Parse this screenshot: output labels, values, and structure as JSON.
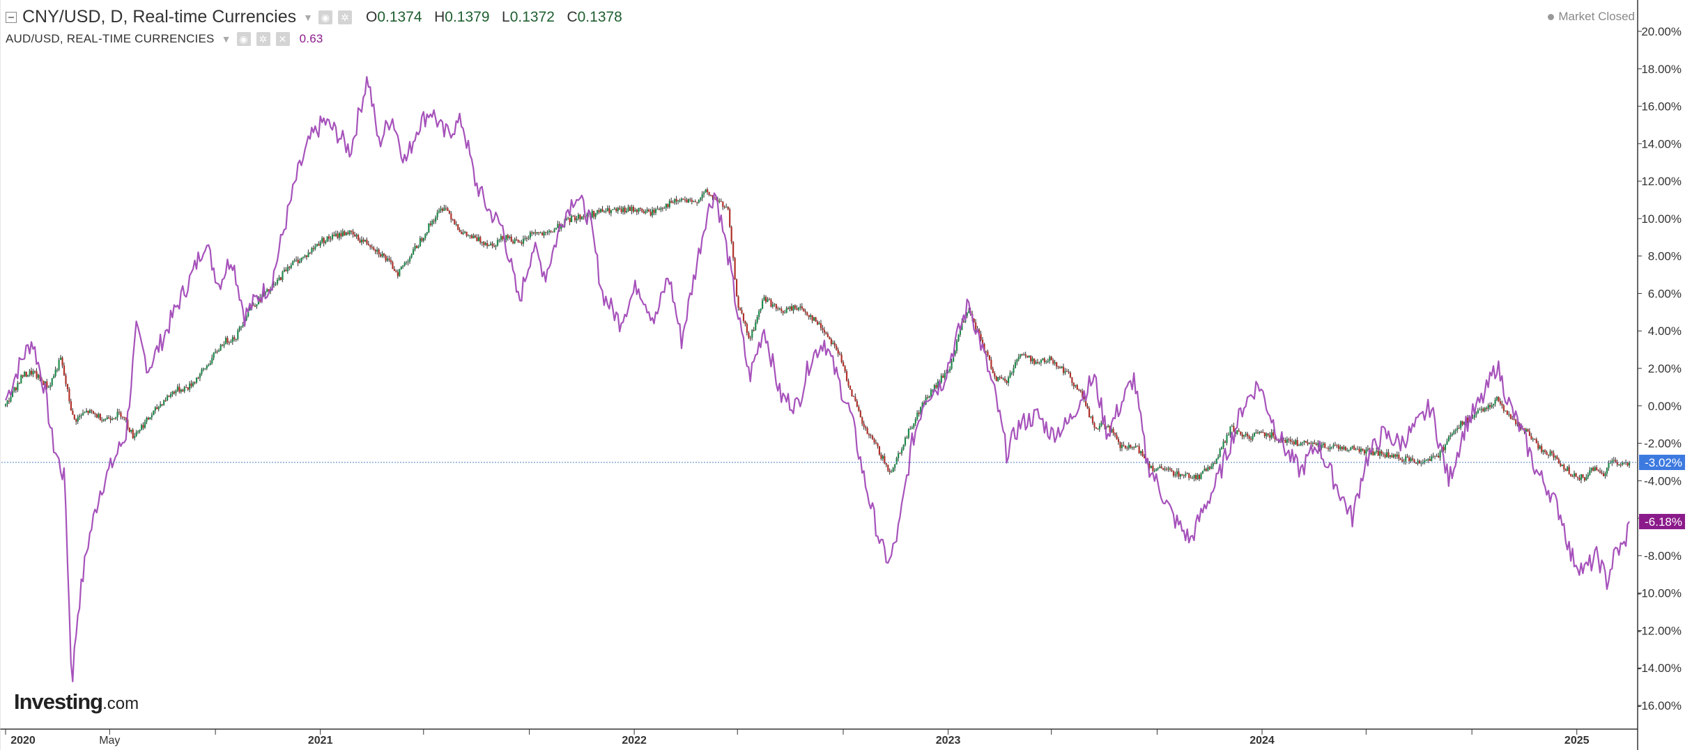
{
  "legend": {
    "symbol_label": "CNY/USD, D, Real-time Currencies",
    "ohlc": {
      "o_key": "O",
      "o_val": "0.1374",
      "h_key": "H",
      "h_val": "0.1379",
      "l_key": "L",
      "l_val": "0.1372",
      "c_key": "C",
      "c_val": "0.1378"
    },
    "compare_label": "AUD/USD, REAL-TIME CURRENCIES",
    "compare_value": "0.63"
  },
  "status": {
    "market": "Market Closed"
  },
  "watermark": {
    "brand": "Investing",
    "suffix": ".com"
  },
  "colors": {
    "compare_line": "#a652bb",
    "candle_up": "#1f8a4c",
    "candle_down": "#b0302a",
    "last_price_label_bg": "#3d7ae0",
    "compare_label_bg": "#8b1a8b",
    "zero_line": "#4a7fc0"
  },
  "icons": [
    "collapse-icon",
    "settings-icon",
    "close-icon",
    "caret-down-icon",
    "status-dot-icon"
  ],
  "chart_data": {
    "type": "line",
    "title": "CNY/USD, D, Real-time Currencies",
    "xlabel": "",
    "ylabel": "",
    "y_unit": "% change",
    "ylim": [
      -16.8,
      20.8
    ],
    "y_ticks": [
      "20.00%",
      "18.00%",
      "16.00%",
      "14.00%",
      "12.00%",
      "10.00%",
      "8.00%",
      "6.00%",
      "4.00%",
      "2.00%",
      "0.00%",
      "-2.00%",
      "-4.00%",
      "-6.00%",
      "-8.00%",
      "-10.00%",
      "-12.00%",
      "-14.00%",
      "-16.00%"
    ],
    "x_range": [
      "2020-01-01",
      "2025-03-03"
    ],
    "x_ticks": [
      {
        "date": "2020-01-01",
        "label": "2020"
      },
      {
        "date": "2020-05-01",
        "label": "May"
      },
      {
        "date": "2021-01-01",
        "label": "2021"
      },
      {
        "date": "2022-01-01",
        "label": "2022"
      },
      {
        "date": "2023-01-01",
        "label": "2023"
      },
      {
        "date": "2024-01-01",
        "label": "2024"
      },
      {
        "date": "2025-01-01",
        "label": "2025"
      }
    ],
    "x_minor_ticks": [
      "2020-09-01",
      "2021-05-01",
      "2021-09-01",
      "2022-05-01",
      "2022-09-01",
      "2023-05-01",
      "2023-09-01",
      "2024-05-01",
      "2024-09-01"
    ],
    "grid": false,
    "baseline_value": -3.02,
    "last_value_labels": [
      {
        "series": "CNY/USD",
        "text": "-3.02%",
        "value": -3.02
      },
      {
        "series": "AUD/USD",
        "text": "-6.18%",
        "value": -6.18
      }
    ],
    "series": [
      {
        "name": "CNY/USD",
        "style": "candlestick",
        "points": [
          [
            "2020-01-01",
            0.0
          ],
          [
            "2020-01-20",
            1.6
          ],
          [
            "2020-02-01",
            1.8
          ],
          [
            "2020-02-20",
            1.0
          ],
          [
            "2020-03-05",
            2.5
          ],
          [
            "2020-03-20",
            -0.8
          ],
          [
            "2020-04-05",
            -0.3
          ],
          [
            "2020-04-25",
            -0.7
          ],
          [
            "2020-05-15",
            -0.4
          ],
          [
            "2020-05-28",
            -1.6
          ],
          [
            "2020-06-15",
            -0.7
          ],
          [
            "2020-07-01",
            0.2
          ],
          [
            "2020-07-15",
            0.8
          ],
          [
            "2020-08-01",
            1.0
          ],
          [
            "2020-08-20",
            2.0
          ],
          [
            "2020-09-10",
            3.4
          ],
          [
            "2020-09-25",
            3.7
          ],
          [
            "2020-10-10",
            5.2
          ],
          [
            "2020-10-25",
            5.8
          ],
          [
            "2020-11-10",
            6.5
          ],
          [
            "2020-11-25",
            7.5
          ],
          [
            "2020-12-15",
            8.0
          ],
          [
            "2021-01-01",
            8.8
          ],
          [
            "2021-01-15",
            9.0
          ],
          [
            "2021-02-01",
            9.3
          ],
          [
            "2021-02-15",
            8.9
          ],
          [
            "2021-03-01",
            8.6
          ],
          [
            "2021-03-15",
            8.0
          ],
          [
            "2021-04-01",
            7.1
          ],
          [
            "2021-04-20",
            8.3
          ],
          [
            "2021-05-10",
            9.8
          ],
          [
            "2021-05-25",
            10.7
          ],
          [
            "2021-06-15",
            9.2
          ],
          [
            "2021-07-01",
            8.9
          ],
          [
            "2021-07-20",
            8.6
          ],
          [
            "2021-08-05",
            9.1
          ],
          [
            "2021-08-20",
            8.6
          ],
          [
            "2021-09-05",
            9.3
          ],
          [
            "2021-09-20",
            9.1
          ],
          [
            "2021-10-05",
            9.6
          ],
          [
            "2021-10-20",
            10.0
          ],
          [
            "2021-11-10",
            10.2
          ],
          [
            "2021-11-25",
            10.4
          ],
          [
            "2021-12-15",
            10.4
          ],
          [
            "2022-01-01",
            10.5
          ],
          [
            "2022-01-20",
            10.3
          ],
          [
            "2022-02-05",
            10.7
          ],
          [
            "2022-02-25",
            11.0
          ],
          [
            "2022-03-10",
            10.8
          ],
          [
            "2022-03-25",
            11.4
          ],
          [
            "2022-04-10",
            10.9
          ],
          [
            "2022-04-20",
            10.4
          ],
          [
            "2022-05-01",
            5.5
          ],
          [
            "2022-05-15",
            3.5
          ],
          [
            "2022-06-01",
            5.8
          ],
          [
            "2022-06-20",
            5.0
          ],
          [
            "2022-07-10",
            5.3
          ],
          [
            "2022-07-25",
            4.8
          ],
          [
            "2022-08-10",
            4.0
          ],
          [
            "2022-08-25",
            3.0
          ],
          [
            "2022-09-10",
            0.8
          ],
          [
            "2022-09-25",
            -1.2
          ],
          [
            "2022-10-10",
            -2.2
          ],
          [
            "2022-10-25",
            -3.6
          ],
          [
            "2022-11-05",
            -2.5
          ],
          [
            "2022-11-20",
            -1.0
          ],
          [
            "2022-12-05",
            0.3
          ],
          [
            "2022-12-20",
            1.2
          ],
          [
            "2023-01-05",
            2.2
          ],
          [
            "2023-01-15",
            4.2
          ],
          [
            "2023-01-25",
            5.0
          ],
          [
            "2023-02-10",
            3.3
          ],
          [
            "2023-02-25",
            1.5
          ],
          [
            "2023-03-10",
            1.3
          ],
          [
            "2023-03-25",
            2.8
          ],
          [
            "2023-04-15",
            2.3
          ],
          [
            "2023-05-01",
            2.5
          ],
          [
            "2023-05-20",
            1.7
          ],
          [
            "2023-06-05",
            0.6
          ],
          [
            "2023-06-20",
            -1.2
          ],
          [
            "2023-07-05",
            -1.0
          ],
          [
            "2023-07-20",
            -2.2
          ],
          [
            "2023-08-10",
            -2.3
          ],
          [
            "2023-08-25",
            -3.3
          ],
          [
            "2023-09-15",
            -3.5
          ],
          [
            "2023-10-01",
            -3.7
          ],
          [
            "2023-10-20",
            -3.8
          ],
          [
            "2023-11-10",
            -2.8
          ],
          [
            "2023-11-25",
            -1.2
          ],
          [
            "2023-12-15",
            -1.7
          ],
          [
            "2024-01-01",
            -1.4
          ],
          [
            "2024-01-20",
            -1.7
          ],
          [
            "2024-02-10",
            -2.0
          ],
          [
            "2024-03-05",
            -2.1
          ],
          [
            "2024-04-01",
            -2.2
          ],
          [
            "2024-05-01",
            -2.4
          ],
          [
            "2024-06-01",
            -2.7
          ],
          [
            "2024-07-01",
            -3.0
          ],
          [
            "2024-07-25",
            -2.6
          ],
          [
            "2024-08-10",
            -1.3
          ],
          [
            "2024-08-25",
            -0.8
          ],
          [
            "2024-09-15",
            -0.2
          ],
          [
            "2024-10-01",
            0.4
          ],
          [
            "2024-10-15",
            -0.6
          ],
          [
            "2024-11-05",
            -1.5
          ],
          [
            "2024-11-20",
            -2.3
          ],
          [
            "2024-12-05",
            -2.7
          ],
          [
            "2024-12-25",
            -3.6
          ],
          [
            "2025-01-10",
            -3.9
          ],
          [
            "2025-01-20",
            -3.3
          ],
          [
            "2025-02-01",
            -3.7
          ],
          [
            "2025-02-10",
            -2.8
          ],
          [
            "2025-02-20",
            -3.2
          ],
          [
            "2025-03-03",
            -3.02
          ]
        ]
      },
      {
        "name": "AUD/USD",
        "style": "line",
        "points": [
          [
            "2020-01-01",
            0.3
          ],
          [
            "2020-01-20",
            2.5
          ],
          [
            "2020-02-01",
            3.5
          ],
          [
            "2020-02-15",
            1.0
          ],
          [
            "2020-02-25",
            -2.0
          ],
          [
            "2020-03-10",
            -4.0
          ],
          [
            "2020-03-18",
            -14.9
          ],
          [
            "2020-03-25",
            -11.0
          ],
          [
            "2020-04-05",
            -7.5
          ],
          [
            "2020-04-20",
            -4.5
          ],
          [
            "2020-05-05",
            -3.0
          ],
          [
            "2020-05-20",
            -1.5
          ],
          [
            "2020-06-01",
            4.0
          ],
          [
            "2020-06-15",
            2.0
          ],
          [
            "2020-07-01",
            3.5
          ],
          [
            "2020-07-20",
            5.5
          ],
          [
            "2020-08-05",
            7.0
          ],
          [
            "2020-08-20",
            8.8
          ],
          [
            "2020-09-05",
            6.5
          ],
          [
            "2020-09-20",
            8.0
          ],
          [
            "2020-10-05",
            4.8
          ],
          [
            "2020-10-20",
            5.8
          ],
          [
            "2020-11-05",
            6.5
          ],
          [
            "2020-11-20",
            9.5
          ],
          [
            "2020-12-05",
            12.3
          ],
          [
            "2020-12-20",
            14.2
          ],
          [
            "2021-01-05",
            15.2
          ],
          [
            "2021-01-20",
            14.6
          ],
          [
            "2021-02-05",
            13.6
          ],
          [
            "2021-02-25",
            17.6
          ],
          [
            "2021-03-10",
            14.0
          ],
          [
            "2021-03-25",
            15.5
          ],
          [
            "2021-04-10",
            13.0
          ],
          [
            "2021-04-25",
            15.0
          ],
          [
            "2021-05-10",
            15.8
          ],
          [
            "2021-05-25",
            14.5
          ],
          [
            "2021-06-15",
            15.2
          ],
          [
            "2021-06-30",
            12.0
          ],
          [
            "2021-07-15",
            10.5
          ],
          [
            "2021-08-01",
            9.5
          ],
          [
            "2021-08-20",
            5.5
          ],
          [
            "2021-09-05",
            8.5
          ],
          [
            "2021-09-20",
            7.0
          ],
          [
            "2021-10-10",
            10.0
          ],
          [
            "2021-10-25",
            11.3
          ],
          [
            "2021-11-10",
            10.0
          ],
          [
            "2021-11-25",
            6.0
          ],
          [
            "2021-12-15",
            4.5
          ],
          [
            "2022-01-05",
            6.5
          ],
          [
            "2022-01-25",
            4.5
          ],
          [
            "2022-02-10",
            7.0
          ],
          [
            "2022-02-25",
            3.5
          ],
          [
            "2022-03-10",
            6.5
          ],
          [
            "2022-03-25",
            10.0
          ],
          [
            "2022-04-05",
            11.5
          ],
          [
            "2022-04-20",
            8.0
          ],
          [
            "2022-05-01",
            5.0
          ],
          [
            "2022-05-15",
            1.5
          ],
          [
            "2022-06-01",
            4.2
          ],
          [
            "2022-06-20",
            0.5
          ],
          [
            "2022-07-10",
            0.0
          ],
          [
            "2022-07-25",
            2.5
          ],
          [
            "2022-08-10",
            3.5
          ],
          [
            "2022-08-25",
            1.5
          ],
          [
            "2022-09-10",
            -0.5
          ],
          [
            "2022-09-25",
            -3.8
          ],
          [
            "2022-10-15",
            -7.5
          ],
          [
            "2022-10-25",
            -8.4
          ],
          [
            "2022-11-05",
            -6.5
          ],
          [
            "2022-11-20",
            -2.0
          ],
          [
            "2022-12-05",
            0.5
          ],
          [
            "2022-12-25",
            1.2
          ],
          [
            "2023-01-10",
            3.5
          ],
          [
            "2023-01-25",
            5.5
          ],
          [
            "2023-02-10",
            3.0
          ],
          [
            "2023-02-25",
            0.5
          ],
          [
            "2023-03-10",
            -2.5
          ],
          [
            "2023-03-25",
            -1.0
          ],
          [
            "2023-04-15",
            -0.5
          ],
          [
            "2023-05-01",
            -1.5
          ],
          [
            "2023-05-20",
            -1.0
          ],
          [
            "2023-06-05",
            0.5
          ],
          [
            "2023-06-20",
            1.5
          ],
          [
            "2023-07-05",
            -1.5
          ],
          [
            "2023-07-20",
            0.0
          ],
          [
            "2023-08-05",
            1.5
          ],
          [
            "2023-08-20",
            -3.0
          ],
          [
            "2023-09-05",
            -4.5
          ],
          [
            "2023-09-20",
            -6.0
          ],
          [
            "2023-10-10",
            -7.2
          ],
          [
            "2023-10-25",
            -5.5
          ],
          [
            "2023-11-10",
            -4.0
          ],
          [
            "2023-11-25",
            -2.0
          ],
          [
            "2023-12-10",
            0.0
          ],
          [
            "2023-12-28",
            1.2
          ],
          [
            "2024-01-15",
            -1.0
          ],
          [
            "2024-01-30",
            -2.5
          ],
          [
            "2024-02-15",
            -3.5
          ],
          [
            "2024-03-05",
            -2.0
          ],
          [
            "2024-03-25",
            -4.0
          ],
          [
            "2024-04-15",
            -6.0
          ],
          [
            "2024-04-30",
            -3.0
          ],
          [
            "2024-05-20",
            -1.5
          ],
          [
            "2024-06-10",
            -2.0
          ],
          [
            "2024-06-30",
            -1.0
          ],
          [
            "2024-07-15",
            0.0
          ],
          [
            "2024-08-05",
            -4.0
          ],
          [
            "2024-08-25",
            -1.0
          ],
          [
            "2024-09-15",
            0.5
          ],
          [
            "2024-09-30",
            2.2
          ],
          [
            "2024-10-15",
            0.0
          ],
          [
            "2024-10-30",
            -1.5
          ],
          [
            "2024-11-15",
            -3.5
          ],
          [
            "2024-11-30",
            -4.5
          ],
          [
            "2024-12-15",
            -6.0
          ],
          [
            "2024-12-25",
            -8.0
          ],
          [
            "2025-01-10",
            -8.8
          ],
          [
            "2025-01-25",
            -8.0
          ],
          [
            "2025-02-05",
            -9.4
          ],
          [
            "2025-02-15",
            -7.8
          ],
          [
            "2025-02-25",
            -7.5
          ],
          [
            "2025-03-03",
            -6.18
          ]
        ]
      }
    ]
  }
}
